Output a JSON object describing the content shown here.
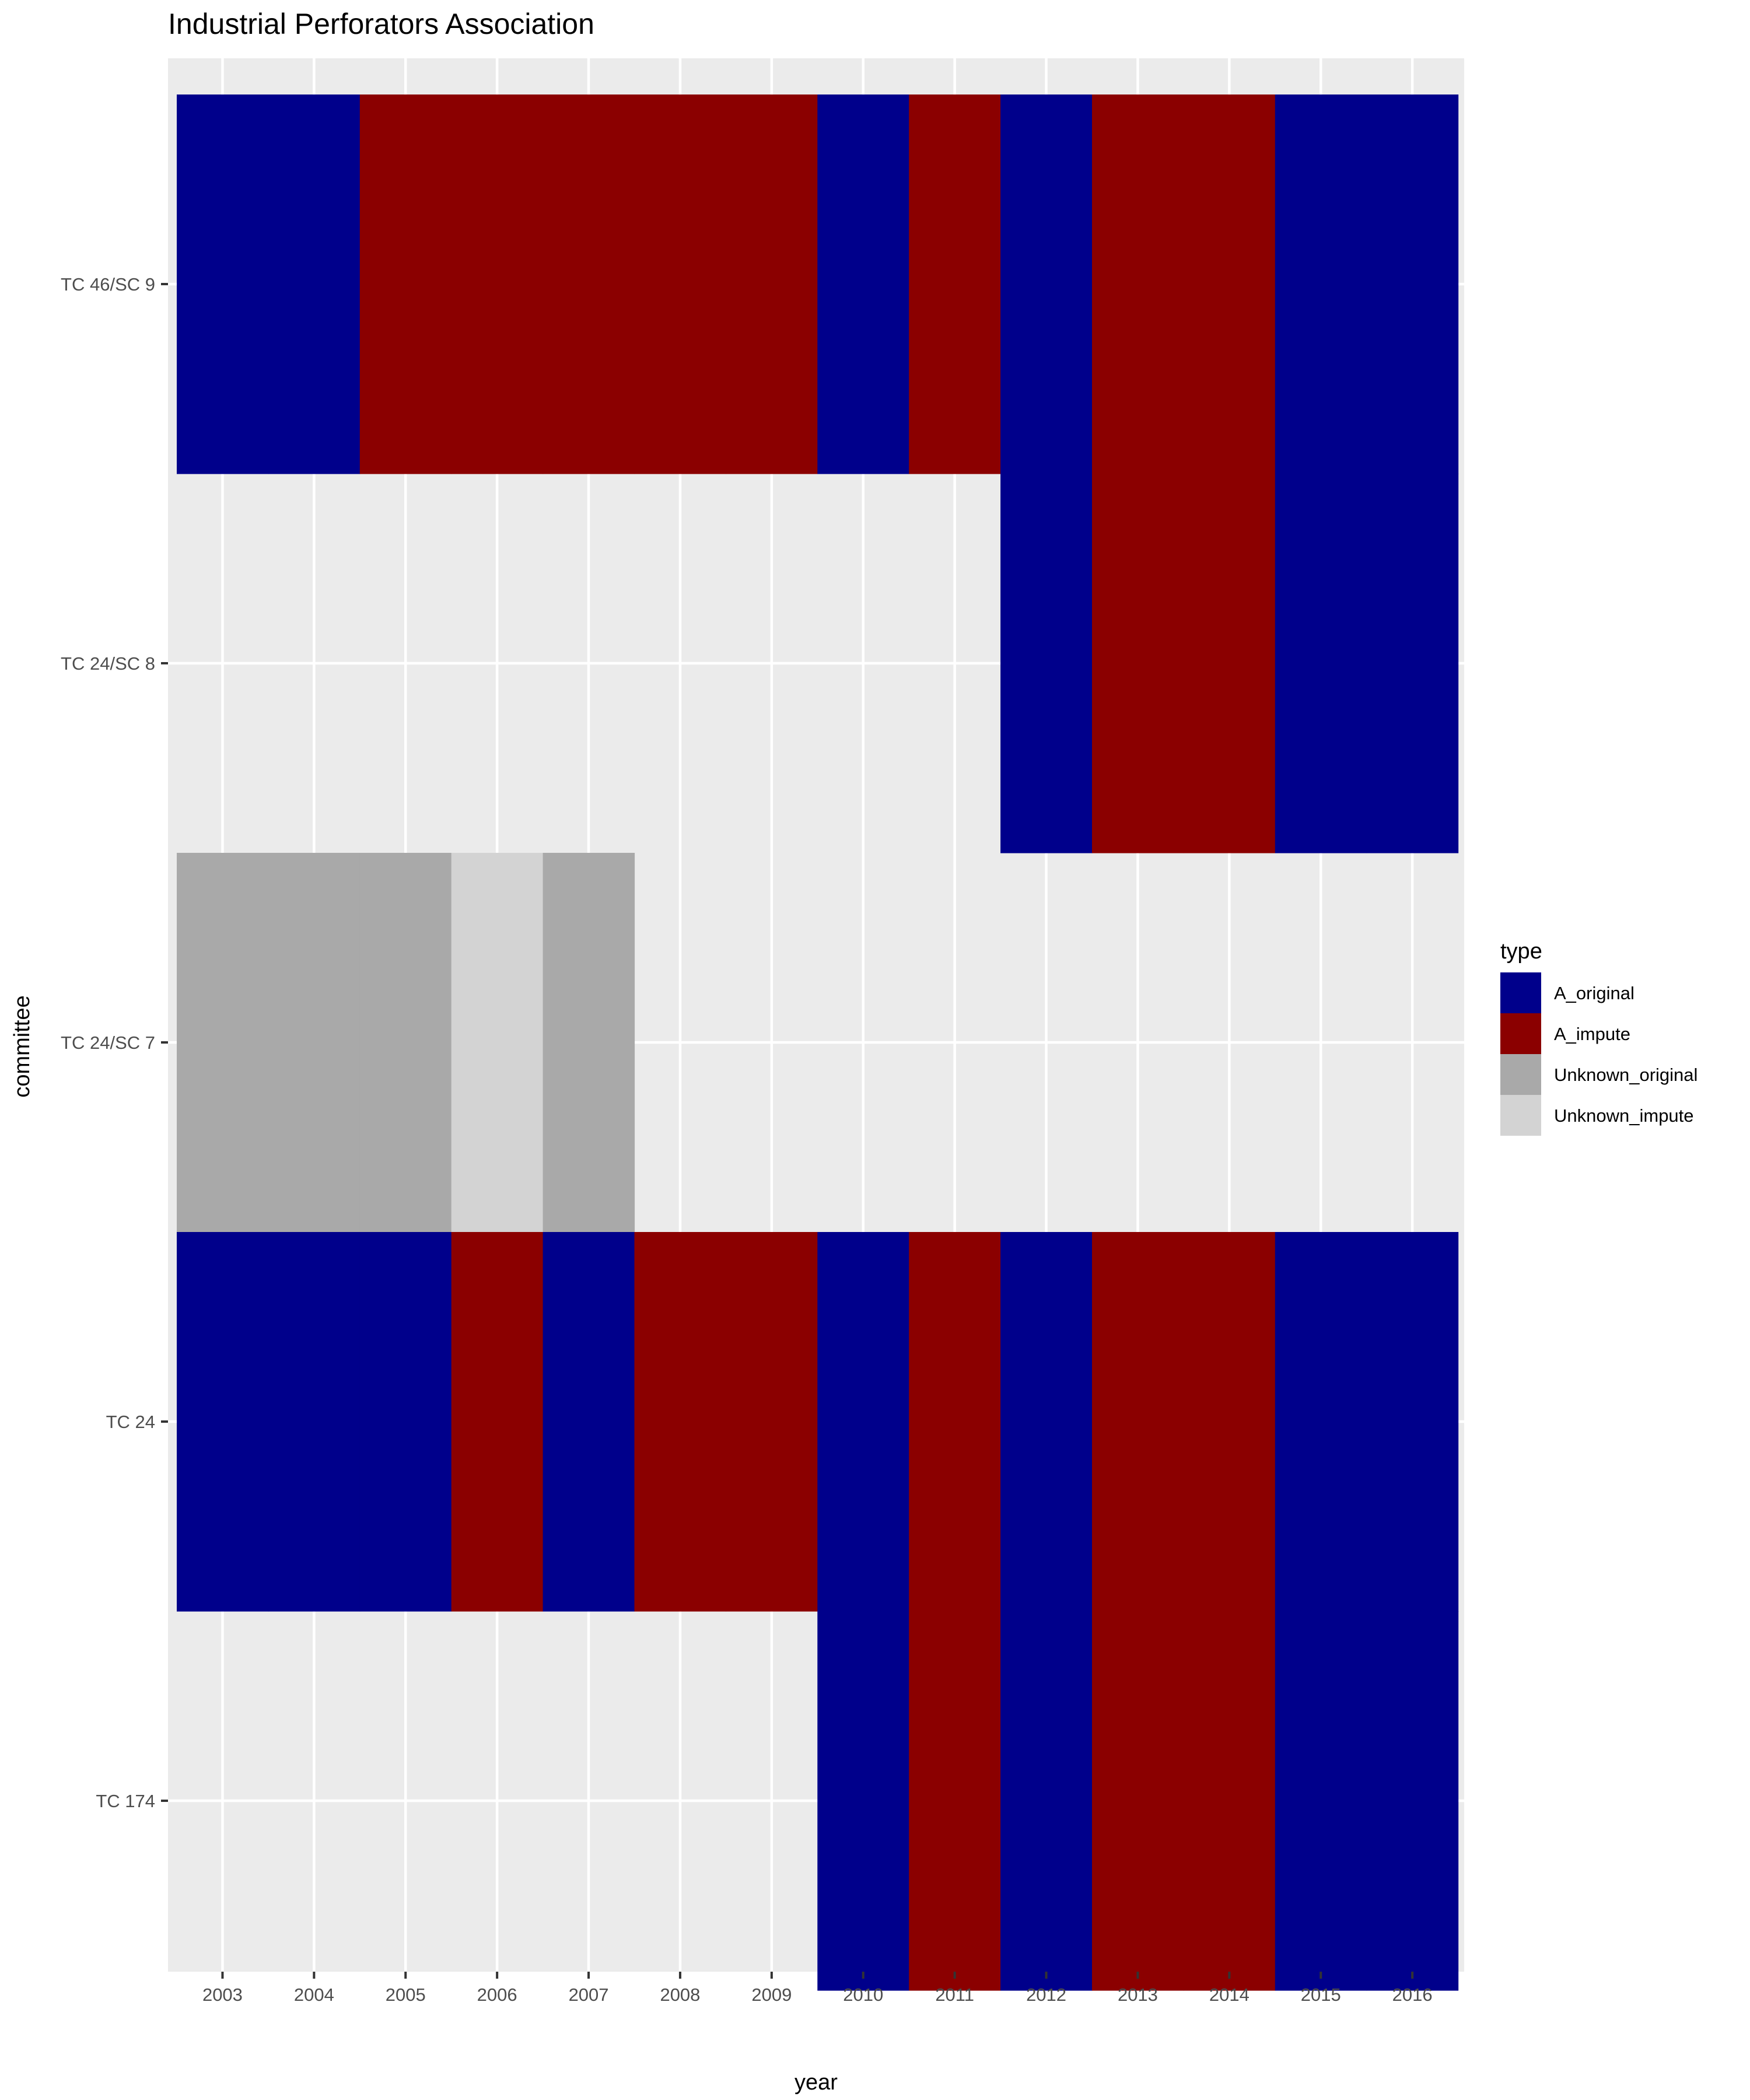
{
  "chart_data": {
    "type": "heatmap",
    "title": "Industrial Perforators Association",
    "xlabel": "year",
    "ylabel": "committee",
    "x_categories": [
      "2003",
      "2004",
      "2005",
      "2006",
      "2007",
      "2008",
      "2009",
      "2010",
      "2011",
      "2012",
      "2013",
      "2014",
      "2015",
      "2016"
    ],
    "y_categories": [
      "TC 46/SC 9",
      "TC 24/SC 8",
      "TC 24/SC 7",
      "TC 24",
      "TC 174"
    ],
    "grid": true,
    "legend_position": "right",
    "legend": {
      "title": "type",
      "entries": [
        {
          "key": "A_original",
          "label": "A_original",
          "color": "#00008B"
        },
        {
          "key": "A_impute",
          "label": "A_impute",
          "color": "#8B0000"
        },
        {
          "key": "Unknown_original",
          "label": "Unknown_original",
          "color": "#A9A9A9"
        },
        {
          "key": "Unknown_impute",
          "label": "Unknown_impute",
          "color": "#D3D3D3"
        }
      ]
    },
    "cells": [
      {
        "committee": "TC 46/SC 9",
        "year": "2003",
        "type": "A_original"
      },
      {
        "committee": "TC 46/SC 9",
        "year": "2004",
        "type": "A_original"
      },
      {
        "committee": "TC 46/SC 9",
        "year": "2005",
        "type": "A_impute"
      },
      {
        "committee": "TC 46/SC 9",
        "year": "2006",
        "type": "A_impute"
      },
      {
        "committee": "TC 46/SC 9",
        "year": "2007",
        "type": "A_impute"
      },
      {
        "committee": "TC 46/SC 9",
        "year": "2008",
        "type": "A_impute"
      },
      {
        "committee": "TC 46/SC 9",
        "year": "2009",
        "type": "A_impute"
      },
      {
        "committee": "TC 46/SC 9",
        "year": "2010",
        "type": "A_original"
      },
      {
        "committee": "TC 46/SC 9",
        "year": "2011",
        "type": "A_impute"
      },
      {
        "committee": "TC 46/SC 9",
        "year": "2012",
        "type": "A_original"
      },
      {
        "committee": "TC 46/SC 9",
        "year": "2013",
        "type": "A_impute"
      },
      {
        "committee": "TC 46/SC 9",
        "year": "2014",
        "type": "A_impute"
      },
      {
        "committee": "TC 46/SC 9",
        "year": "2015",
        "type": "A_original"
      },
      {
        "committee": "TC 46/SC 9",
        "year": "2016",
        "type": "A_original"
      },
      {
        "committee": "TC 24/SC 8",
        "year": "2012",
        "type": "A_original"
      },
      {
        "committee": "TC 24/SC 8",
        "year": "2013",
        "type": "A_impute"
      },
      {
        "committee": "TC 24/SC 8",
        "year": "2014",
        "type": "A_impute"
      },
      {
        "committee": "TC 24/SC 8",
        "year": "2015",
        "type": "A_original"
      },
      {
        "committee": "TC 24/SC 8",
        "year": "2016",
        "type": "A_original"
      },
      {
        "committee": "TC 24/SC 7",
        "year": "2003",
        "type": "Unknown_original"
      },
      {
        "committee": "TC 24/SC 7",
        "year": "2004",
        "type": "Unknown_original"
      },
      {
        "committee": "TC 24/SC 7",
        "year": "2005",
        "type": "Unknown_original"
      },
      {
        "committee": "TC 24/SC 7",
        "year": "2006",
        "type": "Unknown_impute"
      },
      {
        "committee": "TC 24/SC 7",
        "year": "2007",
        "type": "Unknown_original"
      },
      {
        "committee": "TC 24",
        "year": "2003",
        "type": "A_original"
      },
      {
        "committee": "TC 24",
        "year": "2004",
        "type": "A_original"
      },
      {
        "committee": "TC 24",
        "year": "2005",
        "type": "A_original"
      },
      {
        "committee": "TC 24",
        "year": "2006",
        "type": "A_impute"
      },
      {
        "committee": "TC 24",
        "year": "2007",
        "type": "A_original"
      },
      {
        "committee": "TC 24",
        "year": "2008",
        "type": "A_impute"
      },
      {
        "committee": "TC 24",
        "year": "2009",
        "type": "A_impute"
      },
      {
        "committee": "TC 24",
        "year": "2010",
        "type": "A_original"
      },
      {
        "committee": "TC 24",
        "year": "2011",
        "type": "A_impute"
      },
      {
        "committee": "TC 24",
        "year": "2012",
        "type": "A_original"
      },
      {
        "committee": "TC 24",
        "year": "2013",
        "type": "A_impute"
      },
      {
        "committee": "TC 24",
        "year": "2014",
        "type": "A_impute"
      },
      {
        "committee": "TC 24",
        "year": "2015",
        "type": "A_original"
      },
      {
        "committee": "TC 24",
        "year": "2016",
        "type": "A_original"
      },
      {
        "committee": "TC 174",
        "year": "2010",
        "type": "A_original"
      },
      {
        "committee": "TC 174",
        "year": "2011",
        "type": "A_impute"
      },
      {
        "committee": "TC 174",
        "year": "2012",
        "type": "A_original"
      },
      {
        "committee": "TC 174",
        "year": "2013",
        "type": "A_impute"
      },
      {
        "committee": "TC 174",
        "year": "2014",
        "type": "A_impute"
      },
      {
        "committee": "TC 174",
        "year": "2015",
        "type": "A_original"
      },
      {
        "committee": "TC 174",
        "year": "2016",
        "type": "A_original"
      }
    ]
  }
}
